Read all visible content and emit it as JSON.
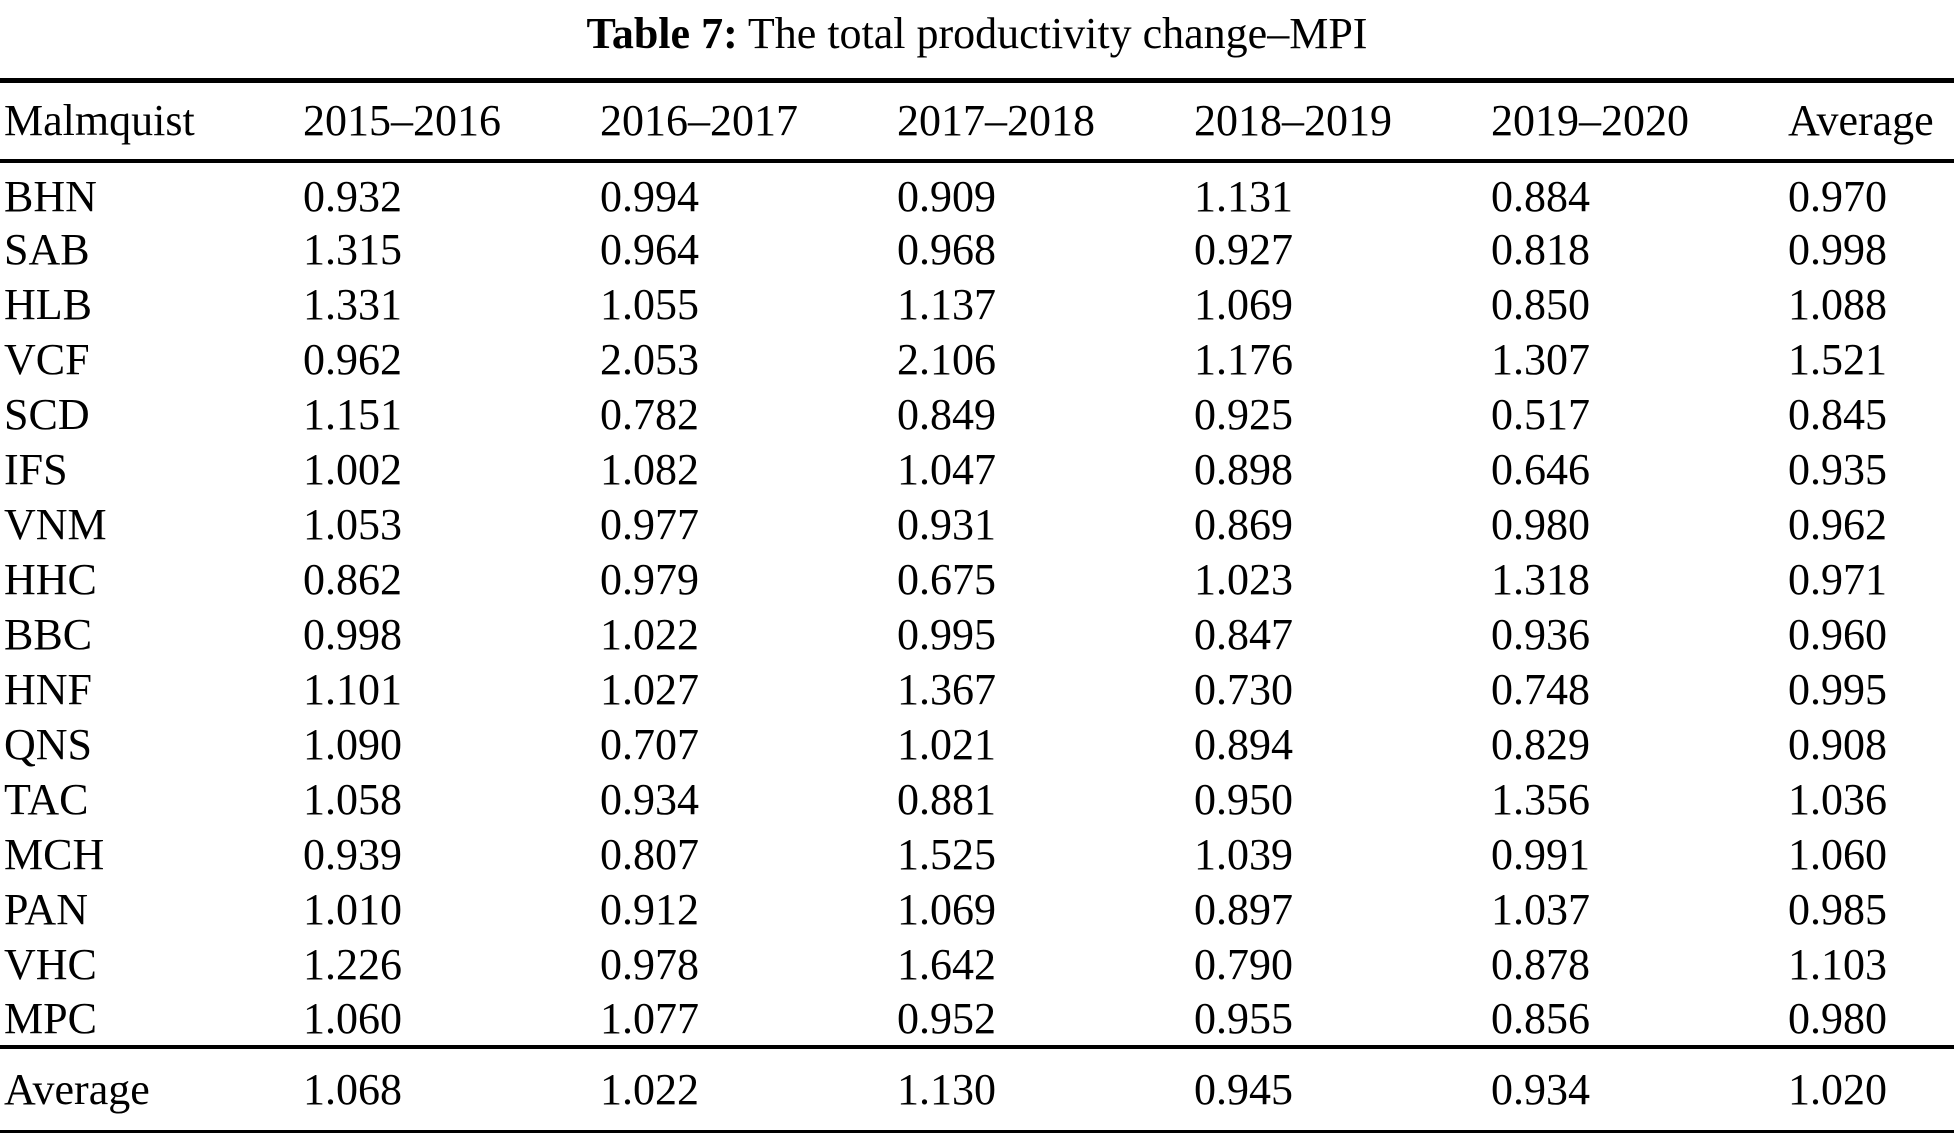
{
  "page": {
    "background": "#ffffff",
    "text_color": "#000000",
    "rule_color": "#000000"
  },
  "title": {
    "prefix": "Table 7:",
    "text": " The total productivity change–MPI"
  },
  "chart_data": {
    "type": "table",
    "title": "Table 7: The total productivity change–MPI",
    "columns": [
      "Malmquist",
      "2015–2016",
      "2016–2017",
      "2017–2018",
      "2018–2019",
      "2019–2020",
      "Average"
    ],
    "rows": [
      [
        "BHN",
        "0.932",
        "0.994",
        "0.909",
        "1.131",
        "0.884",
        "0.970"
      ],
      [
        "SAB",
        "1.315",
        "0.964",
        "0.968",
        "0.927",
        "0.818",
        "0.998"
      ],
      [
        "HLB",
        "1.331",
        "1.055",
        "1.137",
        "1.069",
        "0.850",
        "1.088"
      ],
      [
        "VCF",
        "0.962",
        "2.053",
        "2.106",
        "1.176",
        "1.307",
        "1.521"
      ],
      [
        "SCD",
        "1.151",
        "0.782",
        "0.849",
        "0.925",
        "0.517",
        "0.845"
      ],
      [
        "IFS",
        "1.002",
        "1.082",
        "1.047",
        "0.898",
        "0.646",
        "0.935"
      ],
      [
        "VNM",
        "1.053",
        "0.977",
        "0.931",
        "0.869",
        "0.980",
        "0.962"
      ],
      [
        "HHC",
        "0.862",
        "0.979",
        "0.675",
        "1.023",
        "1.318",
        "0.971"
      ],
      [
        "BBC",
        "0.998",
        "1.022",
        "0.995",
        "0.847",
        "0.936",
        "0.960"
      ],
      [
        "HNF",
        "1.101",
        "1.027",
        "1.367",
        "0.730",
        "0.748",
        "0.995"
      ],
      [
        "QNS",
        "1.090",
        "0.707",
        "1.021",
        "0.894",
        "0.829",
        "0.908"
      ],
      [
        "TAC",
        "1.058",
        "0.934",
        "0.881",
        "0.950",
        "1.356",
        "1.036"
      ],
      [
        "MCH",
        "0.939",
        "0.807",
        "1.525",
        "1.039",
        "0.991",
        "1.060"
      ],
      [
        "PAN",
        "1.010",
        "0.912",
        "1.069",
        "0.897",
        "1.037",
        "0.985"
      ],
      [
        "VHC",
        "1.226",
        "0.978",
        "1.642",
        "0.790",
        "0.878",
        "1.103"
      ],
      [
        "MPC",
        "1.060",
        "1.077",
        "0.952",
        "0.955",
        "0.856",
        "0.980"
      ]
    ],
    "footer": [
      "Average",
      "1.068",
      "1.022",
      "1.130",
      "0.945",
      "0.934",
      "1.020"
    ]
  }
}
